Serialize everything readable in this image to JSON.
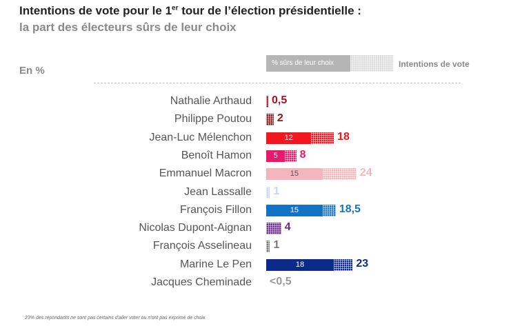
{
  "header": {
    "title_pre": "Intentions de vote pour le 1",
    "title_sup": "er",
    "title_post": " tour de l’élection présidentielle :",
    "subtitle": "la part des électeurs sûrs de leur choix",
    "unit": "En %"
  },
  "legend": {
    "sure_label": "% sûrs de leur choix",
    "total_label": "Intentions de vote"
  },
  "footnote": "23% des répondants ne sont pas certains d'aller voter ou n'ont pas exprimé de choix",
  "chart_data": {
    "type": "bar",
    "orientation": "horizontal",
    "title": "Intentions de vote pour le 1er tour de l’élection présidentielle : la part des électeurs sûrs de leur choix",
    "unit": "En %",
    "categories": [
      "Nathalie Arthaud",
      "Philippe Poutou",
      "Jean-Luc Mélenchon",
      "Benoît Hamon",
      "Emmanuel Macron",
      "Jean Lassalle",
      "François Fillon",
      "Nicolas Dupont-Aignan",
      "François Asselineau",
      "Marine Le Pen",
      "Jacques Cheminade"
    ],
    "series": [
      {
        "name": "Intentions de vote",
        "values": [
          0.5,
          2,
          18,
          8,
          24,
          1,
          18.5,
          4,
          1,
          23,
          0.3
        ]
      },
      {
        "name": "% sûrs de leur choix",
        "values": [
          null,
          null,
          12,
          5,
          15,
          null,
          15,
          null,
          null,
          18,
          null
        ]
      }
    ],
    "value_labels": [
      "0,5",
      "2",
      "18",
      "8",
      "24",
      "1",
      "18,5",
      "4",
      "1",
      "23",
      "<0,5"
    ],
    "sure_labels": [
      "",
      "",
      "12",
      "5",
      "15",
      "",
      "15",
      "",
      "",
      "18",
      ""
    ],
    "colors": [
      "#a31422",
      "#8b1a1a",
      "#f2161e",
      "#e8186a",
      "#f3b6bd",
      "#c6d4f2",
      "#1472c4",
      "#6b2b8c",
      "#777777",
      "#0c2a8a",
      "#9a9a9a"
    ],
    "xlim": [
      0,
      24
    ]
  }
}
